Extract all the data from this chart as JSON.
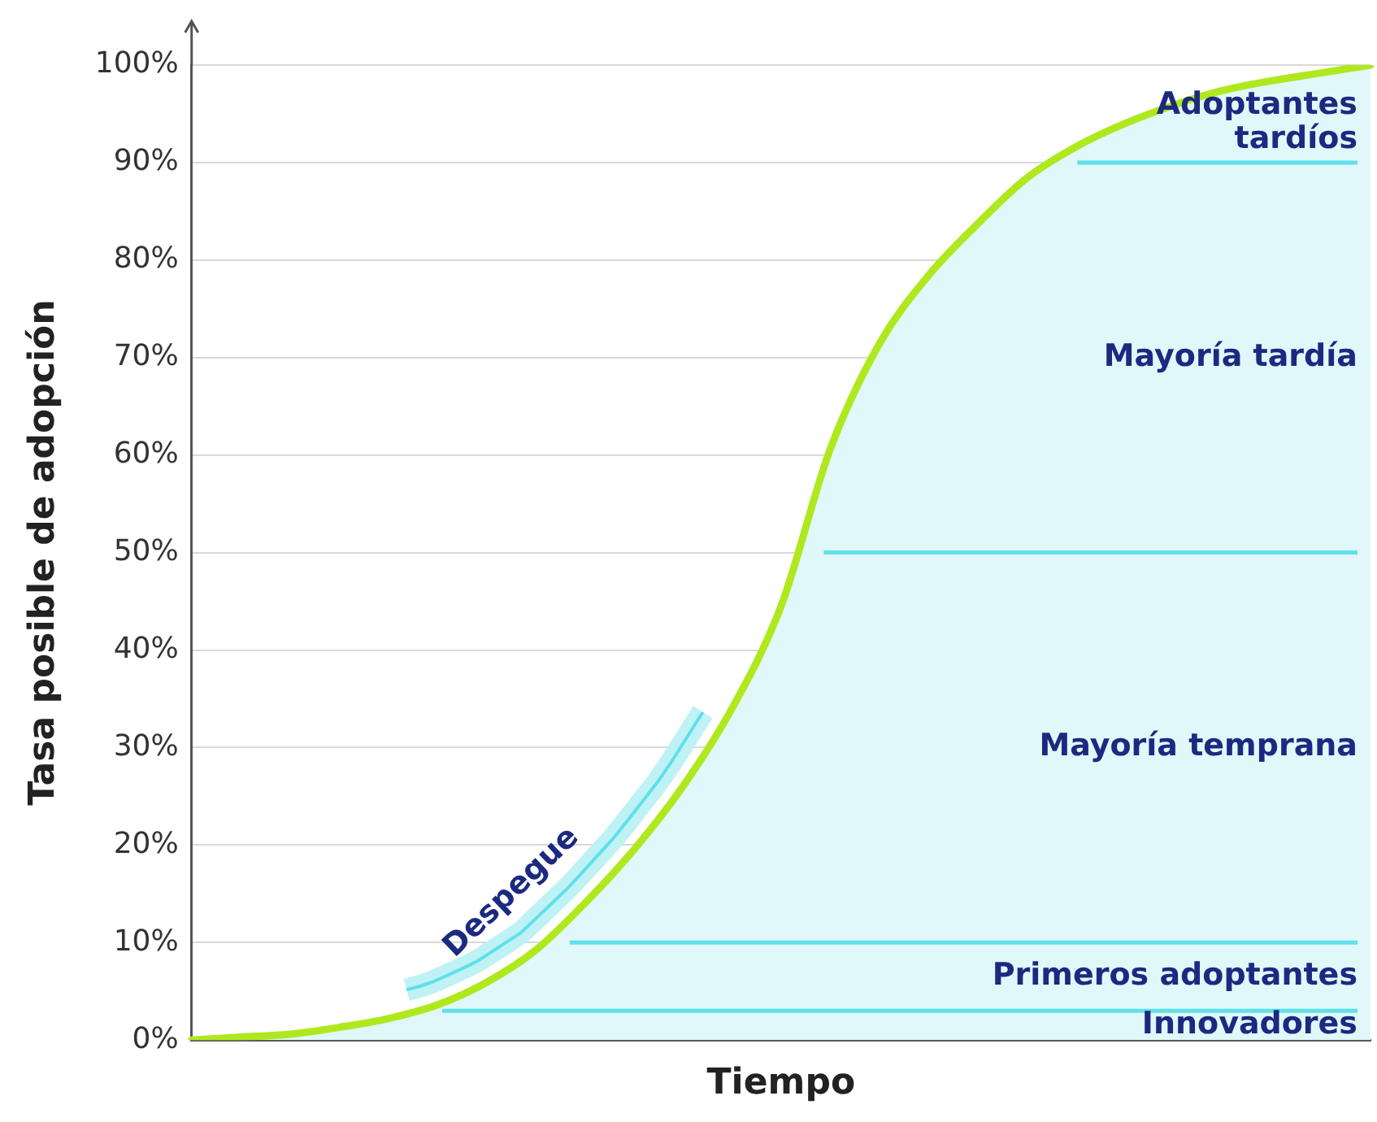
{
  "chart_data": {
    "type": "area",
    "xlabel": "Tiempo",
    "ylabel": "Tasa posible de adopción",
    "categories": [
      null,
      null,
      null,
      null,
      null,
      null,
      null,
      null,
      null,
      null,
      null,
      null,
      null,
      null,
      null,
      null,
      null,
      null,
      null,
      null,
      null,
      null,
      null,
      null,
      null
    ],
    "series": [
      {
        "color": "#b0e81e",
        "values": [
          0,
          0.3,
          0.6,
          1.3,
          2.2,
          3.6,
          5.9,
          9.2,
          14,
          19.5,
          26,
          34,
          44.5,
          60.6,
          71.4,
          78.4,
          83.7,
          88.4,
          91.6,
          94,
          95.9,
          97.4,
          98.4,
          99.2,
          100
        ]
      }
    ],
    "ylim": [
      0,
      100
    ],
    "yticks": [
      {
        "value": 0,
        "label": "0%"
      },
      {
        "value": 10,
        "label": "10%"
      },
      {
        "value": 20,
        "label": "20%"
      },
      {
        "value": 30,
        "label": "30%"
      },
      {
        "value": 40,
        "label": "40%"
      },
      {
        "value": 50,
        "label": "50%"
      },
      {
        "value": 60,
        "label": "60%"
      },
      {
        "value": 70,
        "label": "70%"
      },
      {
        "value": 80,
        "label": "80%"
      },
      {
        "value": 90,
        "label": "90%"
      },
      {
        "value": 100,
        "label": "100%"
      }
    ],
    "ref_lines": [
      {
        "axis": "y",
        "value": 3,
        "color": "#5fe0ea"
      },
      {
        "axis": "y",
        "value": 10,
        "color": "#5fe0ea"
      },
      {
        "axis": "y",
        "value": 50,
        "color": "#5fe0ea"
      },
      {
        "axis": "y",
        "value": 90,
        "color": "#5fe0ea"
      }
    ],
    "annotations": [
      "Innovadores",
      "Primeros adoptantes",
      "Mayoría temprana",
      "Mayoría tardía",
      "Adoptantes tardíos",
      "Despegue"
    ],
    "grid": "y",
    "legend": false,
    "tick_labels": "y",
    "marker": "none",
    "line_style": "solid"
  }
}
